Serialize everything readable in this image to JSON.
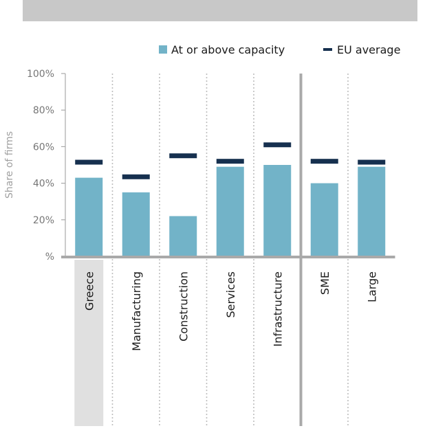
{
  "chart_data": {
    "type": "bar",
    "categories": [
      "Greece",
      "Manufacturing",
      "Construction",
      "Services",
      "Infrastructure",
      "SME",
      "Large"
    ],
    "series": [
      {
        "name": "At or above capacity",
        "values": [
          43,
          35,
          22,
          49,
          50,
          40,
          49
        ]
      },
      {
        "name": "EU average",
        "values": [
          51.5,
          43.5,
          55,
          52,
          61,
          52,
          51.5
        ]
      }
    ],
    "ylabel": "Share of firms",
    "ylim": [
      0,
      100
    ],
    "yticks": [
      0,
      20,
      40,
      60,
      80,
      100
    ],
    "ytick_labels": [
      "%",
      "20%",
      "40%",
      "60%",
      "80%",
      "100%"
    ],
    "legend_position": "top",
    "grid": false,
    "highlighted_category": "Greece",
    "group_separator_after": "Infrastructure"
  },
  "colors": {
    "bar": "#72b3c8",
    "eu_marker": "#16304f",
    "axis": "#a9a9a9",
    "highlight": "#e0e0e0",
    "banner": "#c8c8c8"
  }
}
